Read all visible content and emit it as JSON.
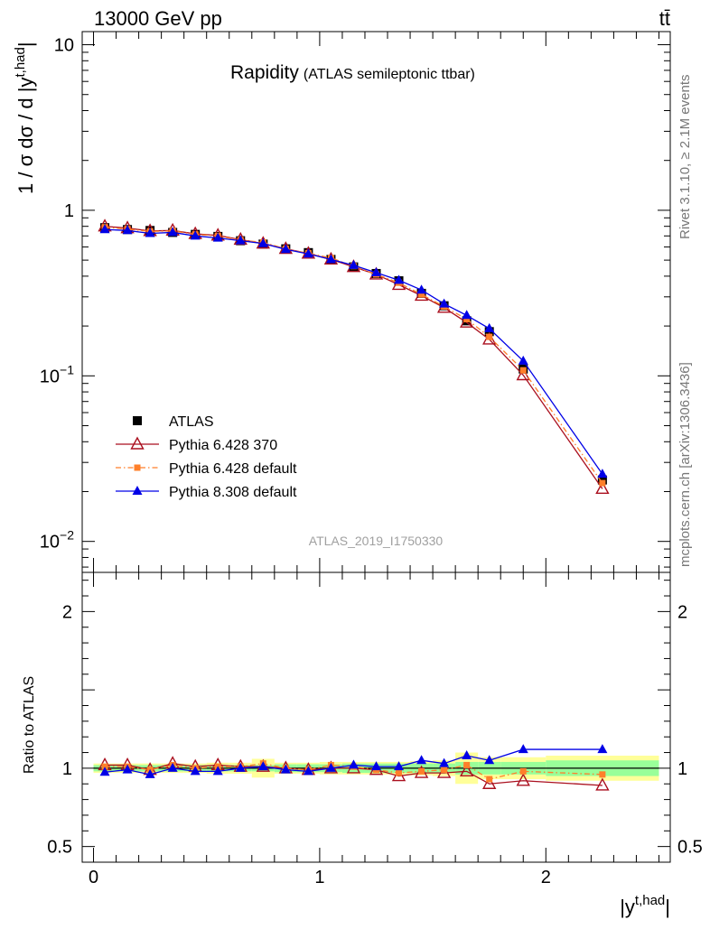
{
  "header": {
    "left": "13000 GeV pp",
    "right": "tt̄"
  },
  "side_text": {
    "rivet": "Rivet 3.1.10, ≥ 2.1M events",
    "mcplots": "mcplots.cern.ch [arXiv:1306.3436]"
  },
  "colors": {
    "atlas": "#000000",
    "pythia6_370": "#aa0f1e",
    "pythia6_default": "#ff7f2a",
    "pythia8": "#0000e6",
    "band_inner": "#99ff99",
    "band_outer": "#ffff99"
  },
  "chart_data": [
    {
      "type": "line",
      "title": "Rapidity",
      "subtitle": "(ATLAS semileptonic ttbar)",
      "ylabel": "1 / σ dσ / d |y^{t,had}|",
      "watermark": "ATLAS_2019_I1750330",
      "yscale": "log",
      "ylim": [
        0.0065,
        12
      ],
      "xlim": [
        -0.05,
        2.55
      ],
      "y_ticks": [
        {
          "v": 0.01,
          "base": "10",
          "exp": "−2"
        },
        {
          "v": 0.1,
          "base": "10",
          "exp": "−1"
        },
        {
          "v": 1,
          "base": "1",
          "exp": ""
        },
        {
          "v": 10,
          "base": "10",
          "exp": ""
        }
      ],
      "x": [
        0.05,
        0.15,
        0.25,
        0.35,
        0.45,
        0.55,
        0.65,
        0.75,
        0.85,
        0.95,
        1.05,
        1.15,
        1.25,
        1.35,
        1.45,
        1.55,
        1.65,
        1.75,
        1.9,
        2.25
      ],
      "legend_placement": "lower-left",
      "series": [
        {
          "name": "ATLAS",
          "marker": "square",
          "values": [
            0.785,
            0.765,
            0.755,
            0.735,
            0.715,
            0.695,
            0.655,
            0.625,
            0.585,
            0.555,
            0.505,
            0.455,
            0.415,
            0.375,
            0.315,
            0.265,
            0.215,
            0.185,
            0.11,
            0.0235
          ]
        },
        {
          "name": "Pythia 6.428 370",
          "marker": "triangle-open",
          "values": [
            0.8,
            0.78,
            0.75,
            0.755,
            0.72,
            0.705,
            0.665,
            0.63,
            0.585,
            0.548,
            0.505,
            0.455,
            0.41,
            0.355,
            0.305,
            0.258,
            0.21,
            0.166,
            0.101,
            0.0208
          ]
        },
        {
          "name": "Pythia 6.428 default",
          "marker": "square-small",
          "dash": "dashdot",
          "values": [
            0.79,
            0.77,
            0.745,
            0.75,
            0.715,
            0.7,
            0.66,
            0.64,
            0.585,
            0.55,
            0.515,
            0.46,
            0.41,
            0.365,
            0.31,
            0.262,
            0.22,
            0.172,
            0.108,
            0.0225
          ]
        },
        {
          "name": "Pythia 8.308 default",
          "marker": "triangle-filled",
          "values": [
            0.765,
            0.755,
            0.725,
            0.735,
            0.7,
            0.68,
            0.655,
            0.63,
            0.58,
            0.545,
            0.505,
            0.465,
            0.42,
            0.378,
            0.33,
            0.272,
            0.232,
            0.193,
            0.123,
            0.0255
          ]
        }
      ]
    },
    {
      "type": "line",
      "ylabel": "Ratio to ATLAS",
      "xlabel": "|y^{t,had}|",
      "ylim": [
        0.4,
        2.25
      ],
      "xlim": [
        -0.05,
        2.55
      ],
      "y_ticks": [
        {
          "v": 0.5,
          "label": "0.5"
        },
        {
          "v": 1,
          "label": "1"
        },
        {
          "v": 2,
          "label": "2"
        }
      ],
      "x_ticks": [
        {
          "v": 0,
          "label": "0"
        },
        {
          "v": 1,
          "label": "1"
        },
        {
          "v": 2,
          "label": "2"
        }
      ],
      "bin_edges": [
        0,
        0.1,
        0.2,
        0.3,
        0.4,
        0.5,
        0.6,
        0.7,
        0.8,
        0.9,
        1.0,
        1.1,
        1.2,
        1.3,
        1.4,
        1.5,
        1.6,
        1.7,
        1.8,
        2.0,
        2.5
      ],
      "band_inner_halfwidth": [
        0.02,
        0.02,
        0.02,
        0.02,
        0.02,
        0.02,
        0.02,
        0.02,
        0.025,
        0.025,
        0.025,
        0.03,
        0.03,
        0.03,
        0.03,
        0.03,
        0.04,
        0.04,
        0.04,
        0.05
      ],
      "band_outer_halfwidth": [
        0.03,
        0.03,
        0.03,
        0.03,
        0.03,
        0.035,
        0.035,
        0.06,
        0.035,
        0.035,
        0.04,
        0.04,
        0.04,
        0.04,
        0.045,
        0.05,
        0.1,
        0.07,
        0.07,
        0.08
      ],
      "x": [
        0.05,
        0.15,
        0.25,
        0.35,
        0.45,
        0.55,
        0.65,
        0.75,
        0.85,
        0.95,
        1.05,
        1.15,
        1.25,
        1.35,
        1.45,
        1.55,
        1.65,
        1.75,
        1.9,
        2.25
      ],
      "series": [
        {
          "name": "Pythia 6.428 370",
          "marker": "triangle-open",
          "values": [
            1.02,
            1.02,
            0.99,
            1.03,
            1.01,
            1.02,
            1.01,
            1.01,
            1.0,
            0.99,
            1.0,
            1.0,
            0.99,
            0.95,
            0.97,
            0.97,
            0.98,
            0.9,
            0.92,
            0.89
          ]
        },
        {
          "name": "Pythia 6.428 default",
          "marker": "square-small",
          "dash": "dashdot",
          "values": [
            1.01,
            1.01,
            0.99,
            1.02,
            1.0,
            1.01,
            1.01,
            1.03,
            1.0,
            0.99,
            1.02,
            1.01,
            0.99,
            0.97,
            0.98,
            0.99,
            1.02,
            0.93,
            0.98,
            0.96
          ]
        },
        {
          "name": "Pythia 8.308 default",
          "marker": "triangle-filled",
          "values": [
            0.975,
            0.99,
            0.96,
            1.0,
            0.98,
            0.98,
            1.0,
            1.01,
            0.99,
            0.98,
            1.0,
            1.02,
            1.01,
            1.01,
            1.05,
            1.03,
            1.08,
            1.05,
            1.12,
            1.12
          ]
        }
      ]
    }
  ]
}
